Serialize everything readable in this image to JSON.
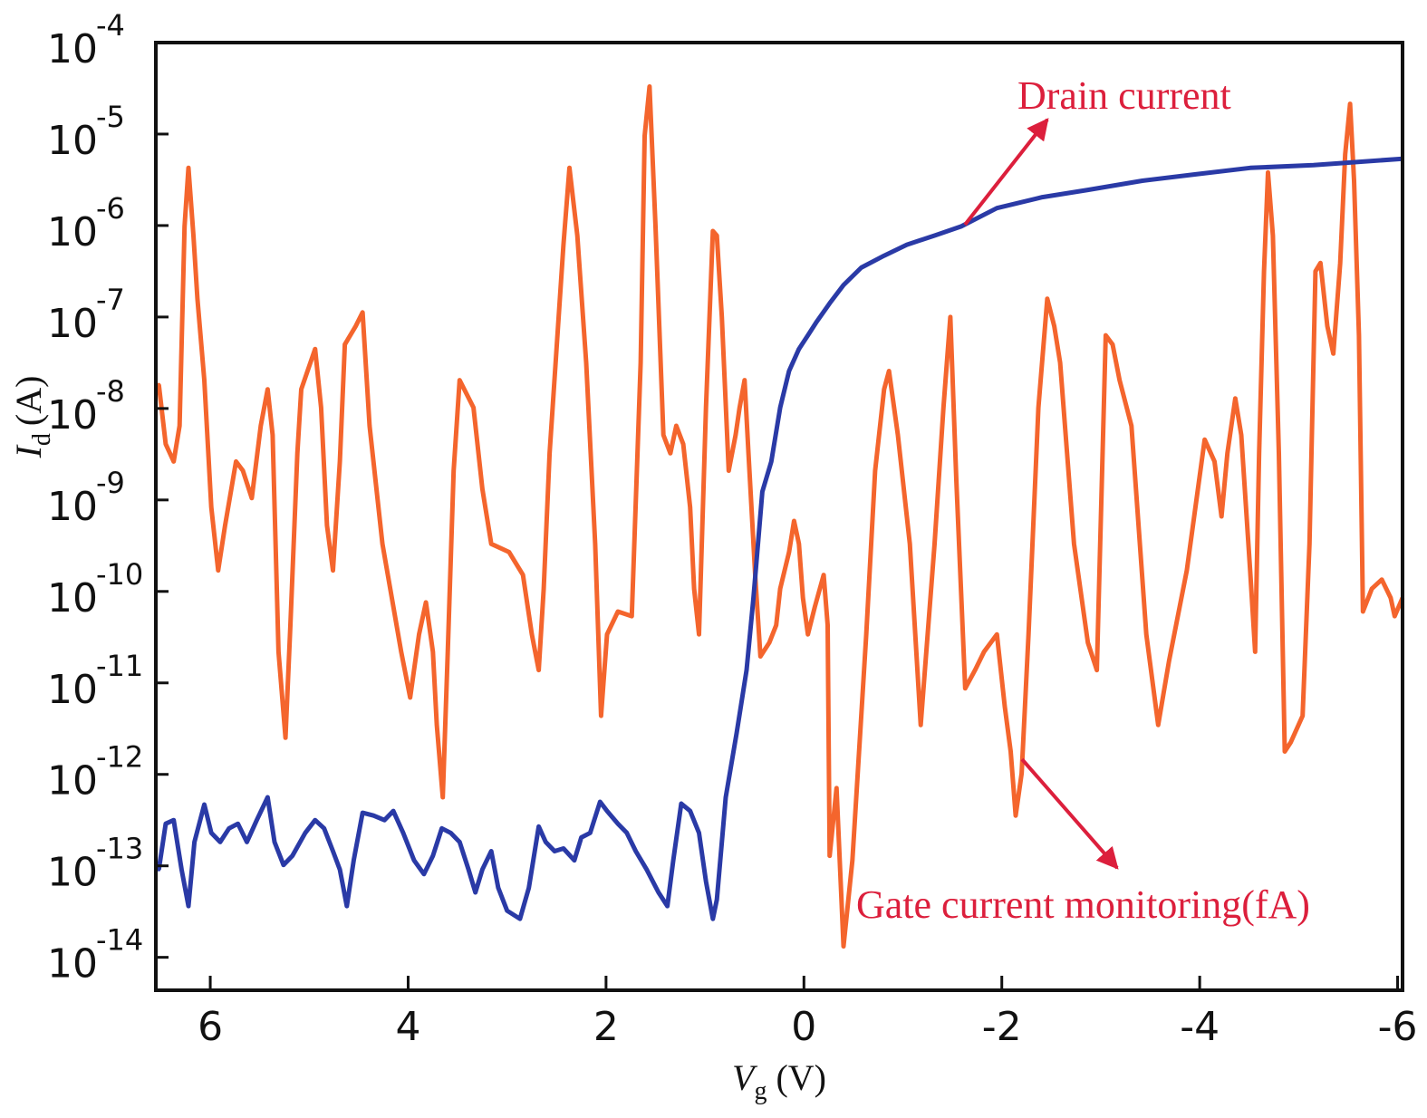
{
  "chart_data": {
    "type": "line",
    "title": "",
    "xlabel": {
      "symbol": "V",
      "sub": "g",
      "unit": "(V)"
    },
    "ylabel": {
      "symbol": "I",
      "sub": "d",
      "unit": "(A)"
    },
    "yscale": "log",
    "xlim": [
      6.55,
      -6.05
    ],
    "ylim_log10": [
      -14.36,
      -4
    ],
    "grid": false,
    "x_ticks": [
      6,
      4,
      2,
      0,
      -2,
      -4,
      -6
    ],
    "x_tick_labels": [
      "6",
      "4",
      "2",
      "0",
      "-2",
      "-4",
      "-6"
    ],
    "y_ticks_log10": [
      -4,
      -5,
      -6,
      -7,
      -8,
      -9,
      -10,
      -11,
      -12,
      -13,
      -14
    ],
    "y_tick_labels": [
      {
        "base": "10",
        "exp": "-4"
      },
      {
        "base": "10",
        "exp": "-5"
      },
      {
        "base": "10",
        "exp": "-6"
      },
      {
        "base": "10",
        "exp": "-7"
      },
      {
        "base": "10",
        "exp": "-8"
      },
      {
        "base": "10",
        "exp": "-9"
      },
      {
        "base": "10",
        "exp": "-10"
      },
      {
        "base": "10",
        "exp": "-11"
      },
      {
        "base": "10",
        "exp": "-12"
      },
      {
        "base": "10",
        "exp": "-13"
      },
      {
        "base": "10",
        "exp": "-14"
      }
    ],
    "annotations": [
      {
        "text": "Drain current",
        "color": "#dc1f3c"
      },
      {
        "text": "Gate current monitoring(fA)",
        "color": "#dc1f3c"
      }
    ],
    "series": [
      {
        "name": "Gate current monitoring",
        "color": "#f4652d",
        "x": [
          6.52,
          6.45,
          6.37,
          6.31,
          6.26,
          6.22,
          6.17,
          6.13,
          6.06,
          5.99,
          5.92,
          5.85,
          5.74,
          5.67,
          5.58,
          5.49,
          5.42,
          5.37,
          5.31,
          5.24,
          5.19,
          5.12,
          5.08,
          4.94,
          4.88,
          4.82,
          4.76,
          4.69,
          4.64,
          4.53,
          4.46,
          4.39,
          4.26,
          4.07,
          3.98,
          3.89,
          3.82,
          3.75,
          3.71,
          3.65,
          3.6,
          3.54,
          3.48,
          3.34,
          3.25,
          3.16,
          2.98,
          2.84,
          2.75,
          2.68,
          2.63,
          2.57,
          2.43,
          2.37,
          2.29,
          2.2,
          2.11,
          2.05,
          1.99,
          1.88,
          1.74,
          1.65,
          1.61,
          1.56,
          1.5,
          1.42,
          1.35,
          1.29,
          1.22,
          1.15,
          1.11,
          1.06,
          0.99,
          0.92,
          0.88,
          0.83,
          0.76,
          0.69,
          0.65,
          0.6,
          0.56,
          0.49,
          0.44,
          0.35,
          0.28,
          0.24,
          0.15,
          0.1,
          0.05,
          0.01,
          -0.04,
          -0.11,
          -0.2,
          -0.24,
          -0.26,
          -0.33,
          -0.4,
          -0.49,
          -0.63,
          -0.72,
          -0.81,
          -0.86,
          -0.95,
          -1.07,
          -1.18,
          -1.32,
          -1.41,
          -1.48,
          -1.54,
          -1.63,
          -1.73,
          -1.82,
          -1.95,
          -2.03,
          -2.09,
          -2.14,
          -2.2,
          -2.27,
          -2.37,
          -2.46,
          -2.53,
          -2.59,
          -2.73,
          -2.87,
          -2.96,
          -3.05,
          -3.12,
          -3.19,
          -3.31,
          -3.46,
          -3.58,
          -3.69,
          -3.87,
          -4.05,
          -4.15,
          -4.22,
          -4.28,
          -4.36,
          -4.42,
          -4.51,
          -4.56,
          -4.6,
          -4.65,
          -4.69,
          -4.74,
          -4.8,
          -4.86,
          -4.92,
          -5.04,
          -5.11,
          -5.17,
          -5.22,
          -5.29,
          -5.35,
          -5.42,
          -5.47,
          -5.52,
          -5.56,
          -5.61,
          -5.65,
          -5.74,
          -5.84,
          -5.93,
          -5.97,
          -6.05
        ],
        "log10_y": [
          -7.74,
          -8.39,
          -8.58,
          -8.19,
          -6.01,
          -5.37,
          -6.11,
          -6.8,
          -7.69,
          -9.08,
          -9.77,
          -9.28,
          -8.58,
          -8.68,
          -8.98,
          -8.19,
          -7.79,
          -8.29,
          -10.66,
          -11.6,
          -10.37,
          -8.49,
          -7.79,
          -7.35,
          -7.99,
          -9.28,
          -9.77,
          -8.58,
          -7.3,
          -7.1,
          -6.95,
          -8.19,
          -9.48,
          -10.66,
          -11.16,
          -10.47,
          -10.12,
          -10.66,
          -11.46,
          -12.25,
          -10.66,
          -8.68,
          -7.69,
          -7.99,
          -8.88,
          -9.48,
          -9.57,
          -9.82,
          -10.47,
          -10.86,
          -9.97,
          -8.49,
          -6.21,
          -5.37,
          -6.11,
          -7.5,
          -9.48,
          -11.36,
          -10.47,
          -10.22,
          -10.27,
          -7.5,
          -5.02,
          -4.48,
          -6.01,
          -8.29,
          -8.49,
          -8.19,
          -8.39,
          -9.08,
          -9.97,
          -10.47,
          -7.99,
          -6.06,
          -6.11,
          -7.0,
          -8.68,
          -8.29,
          -7.99,
          -7.69,
          -8.49,
          -9.87,
          -10.71,
          -10.56,
          -10.37,
          -9.97,
          -9.57,
          -9.23,
          -9.48,
          -10.07,
          -10.47,
          -10.17,
          -9.82,
          -10.37,
          -12.89,
          -12.15,
          -13.88,
          -12.94,
          -10.47,
          -8.68,
          -7.79,
          -7.59,
          -8.29,
          -9.48,
          -11.46,
          -9.48,
          -7.99,
          -7.0,
          -8.78,
          -11.06,
          -10.86,
          -10.66,
          -10.47,
          -11.26,
          -11.75,
          -12.45,
          -11.99,
          -10.47,
          -7.99,
          -6.8,
          -7.1,
          -7.5,
          -9.48,
          -10.56,
          -10.86,
          -7.2,
          -7.3,
          -7.69,
          -8.19,
          -10.47,
          -11.46,
          -10.76,
          -9.77,
          -8.34,
          -8.58,
          -9.18,
          -8.49,
          -7.89,
          -8.29,
          -9.77,
          -10.66,
          -8.49,
          -6.5,
          -5.42,
          -6.11,
          -8.49,
          -11.75,
          -11.65,
          -11.36,
          -9.48,
          -6.5,
          -6.41,
          -7.1,
          -7.4,
          -6.41,
          -5.22,
          -4.67,
          -5.51,
          -7.2,
          -10.22,
          -9.97,
          -9.87,
          -10.07,
          -10.27,
          -10.07
        ]
      },
      {
        "name": "Drain current",
        "color": "#2a3aa6",
        "x": [
          6.52,
          6.45,
          6.37,
          6.29,
          6.22,
          6.16,
          6.06,
          5.99,
          5.9,
          5.81,
          5.72,
          5.63,
          5.53,
          5.42,
          5.35,
          5.26,
          5.17,
          5.04,
          4.94,
          4.85,
          4.76,
          4.69,
          4.62,
          4.55,
          4.46,
          4.35,
          4.24,
          4.15,
          4.05,
          3.94,
          3.84,
          3.75,
          3.66,
          3.57,
          3.48,
          3.39,
          3.32,
          3.25,
          3.16,
          3.09,
          3.0,
          2.87,
          2.78,
          2.68,
          2.61,
          2.52,
          2.43,
          2.32,
          2.25,
          2.16,
          2.06,
          1.99,
          1.88,
          1.79,
          1.7,
          1.59,
          1.47,
          1.38,
          1.32,
          1.24,
          1.15,
          1.06,
          0.99,
          0.92,
          0.88,
          0.79,
          0.68,
          0.58,
          0.51,
          0.42,
          0.33,
          0.24,
          0.15,
          0.05,
          -0.04,
          -0.13,
          -0.26,
          -0.4,
          -0.58,
          -0.81,
          -1.04,
          -1.32,
          -1.59,
          -1.95,
          -2.41,
          -2.87,
          -3.42,
          -3.96,
          -4.51,
          -5.15,
          -6.05
        ],
        "log10_y": [
          -13.04,
          -12.54,
          -12.5,
          -13.04,
          -13.44,
          -12.74,
          -12.33,
          -12.64,
          -12.74,
          -12.59,
          -12.54,
          -12.74,
          -12.5,
          -12.25,
          -12.74,
          -12.99,
          -12.89,
          -12.64,
          -12.5,
          -12.59,
          -12.84,
          -13.04,
          -13.44,
          -12.94,
          -12.42,
          -12.45,
          -12.5,
          -12.4,
          -12.64,
          -12.94,
          -13.09,
          -12.89,
          -12.59,
          -12.64,
          -12.74,
          -13.04,
          -13.29,
          -13.04,
          -12.84,
          -13.24,
          -13.49,
          -13.58,
          -13.24,
          -12.57,
          -12.74,
          -12.84,
          -12.81,
          -12.94,
          -12.69,
          -12.64,
          -12.3,
          -12.4,
          -12.54,
          -12.64,
          -12.84,
          -13.04,
          -13.29,
          -13.44,
          -12.94,
          -12.32,
          -12.4,
          -12.64,
          -13.17,
          -13.58,
          -13.37,
          -12.25,
          -11.55,
          -10.86,
          -10.07,
          -8.91,
          -8.58,
          -7.99,
          -7.59,
          -7.35,
          -7.2,
          -7.05,
          -6.85,
          -6.65,
          -6.46,
          -6.33,
          -6.21,
          -6.11,
          -6.01,
          -5.81,
          -5.69,
          -5.61,
          -5.51,
          -5.44,
          -5.37,
          -5.34,
          -5.27
        ]
      }
    ]
  }
}
